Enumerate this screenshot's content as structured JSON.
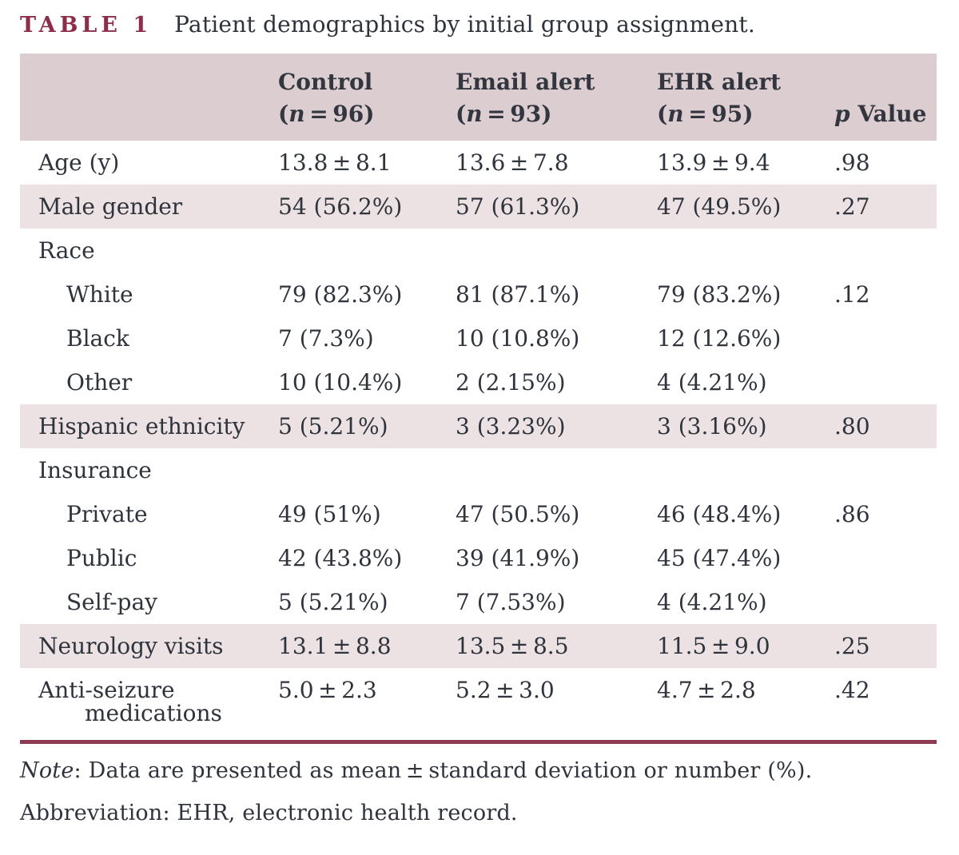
{
  "title": {
    "tag": "TABLE 1",
    "text": "Patient demographics by initial group assignment."
  },
  "table": {
    "header": {
      "format": {
        "n_open": "(",
        "n_eq": " = ",
        "n_close": ")"
      },
      "groups": [
        {
          "name": "Control",
          "n_symbol": "n",
          "n_value": "96"
        },
        {
          "name": "Email alert",
          "n_symbol": "n",
          "n_value": "93"
        },
        {
          "name": "EHR alert",
          "n_symbol": "n",
          "n_value": "95"
        }
      ],
      "p_symbol": "p",
      "p_rest": " Value"
    },
    "rows": [
      {
        "label": "Age (y)",
        "indent": false,
        "shaded": false,
        "wrap": false,
        "values": [
          "13.8 ± 8.1",
          "13.6 ± 7.8",
          "13.9 ± 9.4",
          ".98"
        ]
      },
      {
        "label": "Male gender",
        "indent": false,
        "shaded": true,
        "wrap": false,
        "values": [
          "54 (56.2%)",
          "57 (61.3%)",
          "47 (49.5%)",
          ".27"
        ]
      },
      {
        "label": "Race",
        "indent": false,
        "shaded": false,
        "wrap": false,
        "values": [
          "",
          "",
          "",
          ""
        ]
      },
      {
        "label": "White",
        "indent": true,
        "shaded": false,
        "wrap": false,
        "values": [
          "79 (82.3%)",
          "81 (87.1%)",
          "79 (83.2%)",
          ".12"
        ]
      },
      {
        "label": "Black",
        "indent": true,
        "shaded": false,
        "wrap": false,
        "values": [
          "7 (7.3%)",
          "10 (10.8%)",
          "12 (12.6%)",
          ""
        ]
      },
      {
        "label": "Other",
        "indent": true,
        "shaded": false,
        "wrap": false,
        "values": [
          "10 (10.4%)",
          "2 (2.15%)",
          "4 (4.21%)",
          ""
        ]
      },
      {
        "label": "Hispanic ethnicity",
        "indent": false,
        "shaded": true,
        "wrap": false,
        "values": [
          "5 (5.21%)",
          "3 (3.23%)",
          "3 (3.16%)",
          ".80"
        ]
      },
      {
        "label": "Insurance",
        "indent": false,
        "shaded": false,
        "wrap": false,
        "values": [
          "",
          "",
          "",
          ""
        ]
      },
      {
        "label": "Private",
        "indent": true,
        "shaded": false,
        "wrap": false,
        "values": [
          "49 (51%)",
          "47 (50.5%)",
          "46 (48.4%)",
          ".86"
        ]
      },
      {
        "label": "Public",
        "indent": true,
        "shaded": false,
        "wrap": false,
        "values": [
          "42 (43.8%)",
          "39 (41.9%)",
          "45 (47.4%)",
          ""
        ]
      },
      {
        "label": "Self-pay",
        "indent": true,
        "shaded": false,
        "wrap": false,
        "values": [
          "5 (5.21%)",
          "7 (7.53%)",
          "4 (4.21%)",
          ""
        ]
      },
      {
        "label": "Neurology visits",
        "indent": false,
        "shaded": true,
        "wrap": false,
        "values": [
          "13.1 ± 8.8",
          "13.5 ± 8.5",
          "11.5 ± 9.0",
          ".25"
        ]
      },
      {
        "label": "Anti-seizure medications",
        "indent": false,
        "shaded": false,
        "wrap": true,
        "values": [
          "5.0 ± 2.3",
          "5.2 ± 3.0",
          "4.7 ± 2.8",
          ".42"
        ]
      }
    ]
  },
  "footnotes": {
    "note_label": "Note",
    "note_rest": ": Data are presented as mean ± standard deviation or number (%).",
    "abbreviation": "Abbreviation: EHR, electronic health record."
  },
  "colors": {
    "accent_maroon": "#8c2e4a",
    "bottom_rule": "#8d3a53",
    "header_bg": "#dbcdd0",
    "shaded_row_bg": "#ece1e3",
    "text": "#2f333c"
  }
}
